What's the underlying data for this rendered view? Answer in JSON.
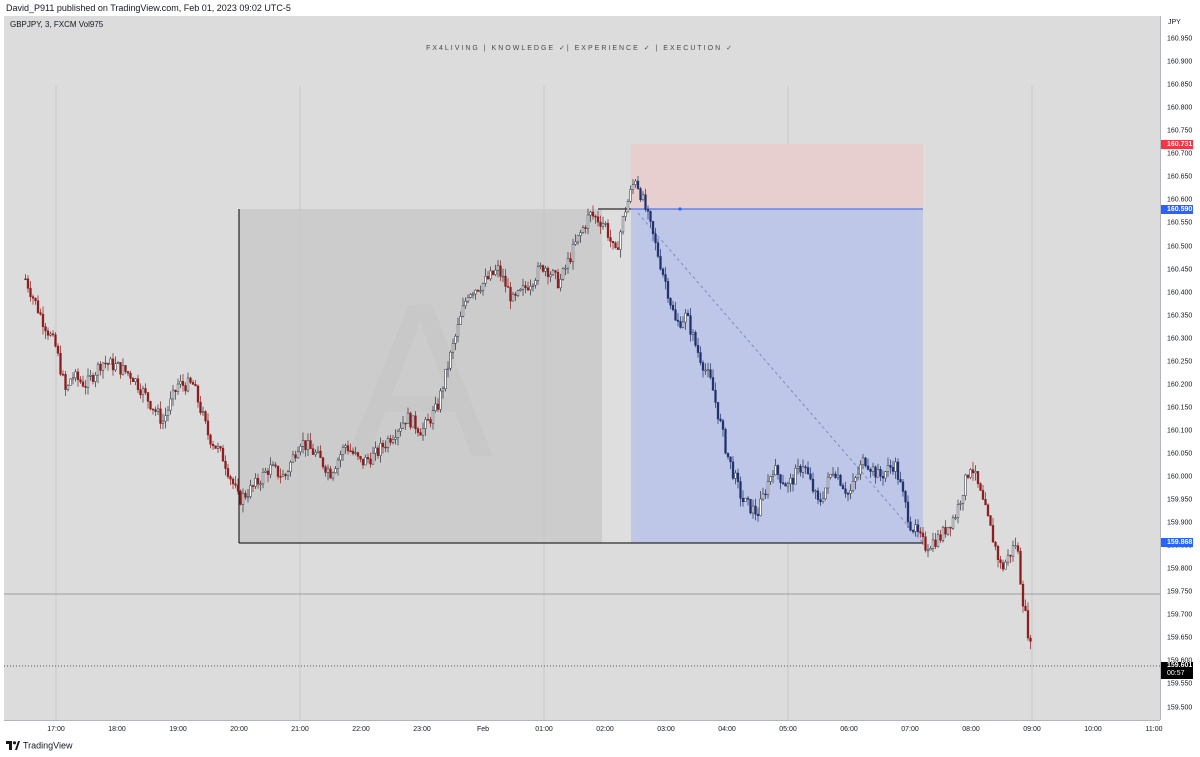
{
  "header": {
    "published": "David_P911 published on TradingView.com, Feb 01, 2023 09:02 UTC-5"
  },
  "legend": {
    "symbol": "GBPJPY, 3, FXCM  Vol975"
  },
  "watermark": {
    "text": "FX4LIVING | KNOWLEDGE ✓| EXPERIENCE ✓ | EXECUTION ✓",
    "big_letter": "A"
  },
  "price_axis": {
    "currency": "JPY",
    "ticks": [
      "160.950",
      "160.900",
      "160.850",
      "160.800",
      "160.750",
      "160.700",
      "160.650",
      "160.600",
      "160.550",
      "160.500",
      "160.450",
      "160.400",
      "160.350",
      "160.300",
      "160.250",
      "160.200",
      "160.150",
      "160.100",
      "160.050",
      "160.000",
      "159.950",
      "159.900",
      "159.850",
      "159.800",
      "159.750",
      "159.700",
      "159.650",
      "159.600",
      "159.550",
      "159.500"
    ],
    "labels": {
      "stop": "160.731",
      "entry": "160.590",
      "level": "159.868",
      "last": "159.601",
      "countdown": "00:57"
    }
  },
  "time_axis": {
    "ticks": [
      "17:00",
      "18:00",
      "19:00",
      "20:00",
      "21:00",
      "22:00",
      "23:00",
      "Feb",
      "01:00",
      "02:00",
      "03:00",
      "04:00",
      "05:00",
      "06:00",
      "07:00",
      "08:00",
      "09:00",
      "10:00",
      "11:00"
    ]
  },
  "footer": {
    "brand": "TradingView",
    "icon": "tradingview-logo-icon"
  },
  "colors": {
    "bull_candle": "#2a2e39",
    "bear_candle": "#8b1a1a",
    "stop_zone": "#f2cccc",
    "target_zone": "#bcc6e8",
    "gray_zone": "#c4c4c4",
    "label_red": "#f23645",
    "label_blue": "#2962ff"
  },
  "chart_data": {
    "type": "candlestick",
    "symbol": "GBPJPY",
    "timeframe": "3",
    "ylim": [
      159.48,
      161.0
    ],
    "path": [
      [
        "16:30",
        160.43
      ],
      [
        "16:45",
        160.35
      ],
      [
        "17:00",
        160.28
      ],
      [
        "17:10",
        160.18
      ],
      [
        "17:15",
        160.22
      ],
      [
        "17:30",
        160.2
      ],
      [
        "17:45",
        160.25
      ],
      [
        "18:00",
        160.24
      ],
      [
        "18:15",
        160.22
      ],
      [
        "18:30",
        160.17
      ],
      [
        "18:45",
        160.12
      ],
      [
        "19:00",
        160.2
      ],
      [
        "19:15",
        160.2
      ],
      [
        "19:30",
        160.09
      ],
      [
        "19:45",
        160.04
      ],
      [
        "20:00",
        159.95
      ],
      [
        "20:15",
        159.98
      ],
      [
        "20:30",
        160.02
      ],
      [
        "20:45",
        160.0
      ],
      [
        "21:00",
        160.08
      ],
      [
        "21:15",
        160.05
      ],
      [
        "21:30",
        160.01
      ],
      [
        "21:45",
        160.07
      ],
      [
        "22:00",
        160.03
      ],
      [
        "22:15",
        160.05
      ],
      [
        "22:30",
        160.09
      ],
      [
        "22:45",
        160.13
      ],
      [
        "23:00",
        160.1
      ],
      [
        "23:15",
        160.15
      ],
      [
        "23:30",
        160.28
      ],
      [
        "23:45",
        160.4
      ],
      [
        "00:00",
        160.42
      ],
      [
        "00:15",
        160.45
      ],
      [
        "00:30",
        160.38
      ],
      [
        "00:45",
        160.42
      ],
      [
        "01:00",
        160.46
      ],
      [
        "01:15",
        160.42
      ],
      [
        "01:30",
        160.5
      ],
      [
        "01:45",
        160.57
      ],
      [
        "02:00",
        160.55
      ],
      [
        "02:10",
        160.48
      ],
      [
        "02:20",
        160.58
      ],
      [
        "02:30",
        160.65
      ],
      [
        "02:40",
        160.58
      ],
      [
        "02:50",
        160.5
      ],
      [
        "03:00",
        160.42
      ],
      [
        "03:10",
        160.33
      ],
      [
        "03:20",
        160.35
      ],
      [
        "03:30",
        160.28
      ],
      [
        "03:45",
        160.2
      ],
      [
        "04:00",
        160.05
      ],
      [
        "04:15",
        159.95
      ],
      [
        "04:30",
        159.92
      ],
      [
        "04:45",
        160.02
      ],
      [
        "05:00",
        159.98
      ],
      [
        "05:15",
        160.03
      ],
      [
        "05:30",
        159.94
      ],
      [
        "05:45",
        160.02
      ],
      [
        "06:00",
        159.96
      ],
      [
        "06:15",
        160.04
      ],
      [
        "06:30",
        160.0
      ],
      [
        "06:45",
        160.03
      ],
      [
        "07:00",
        159.9
      ],
      [
        "07:15",
        159.85
      ],
      [
        "07:30",
        159.87
      ],
      [
        "07:45",
        159.92
      ],
      [
        "08:00",
        160.03
      ],
      [
        "08:15",
        159.92
      ],
      [
        "08:30",
        159.8
      ],
      [
        "08:45",
        159.86
      ],
      [
        "08:50",
        159.75
      ],
      [
        "09:00",
        159.61
      ]
    ]
  }
}
